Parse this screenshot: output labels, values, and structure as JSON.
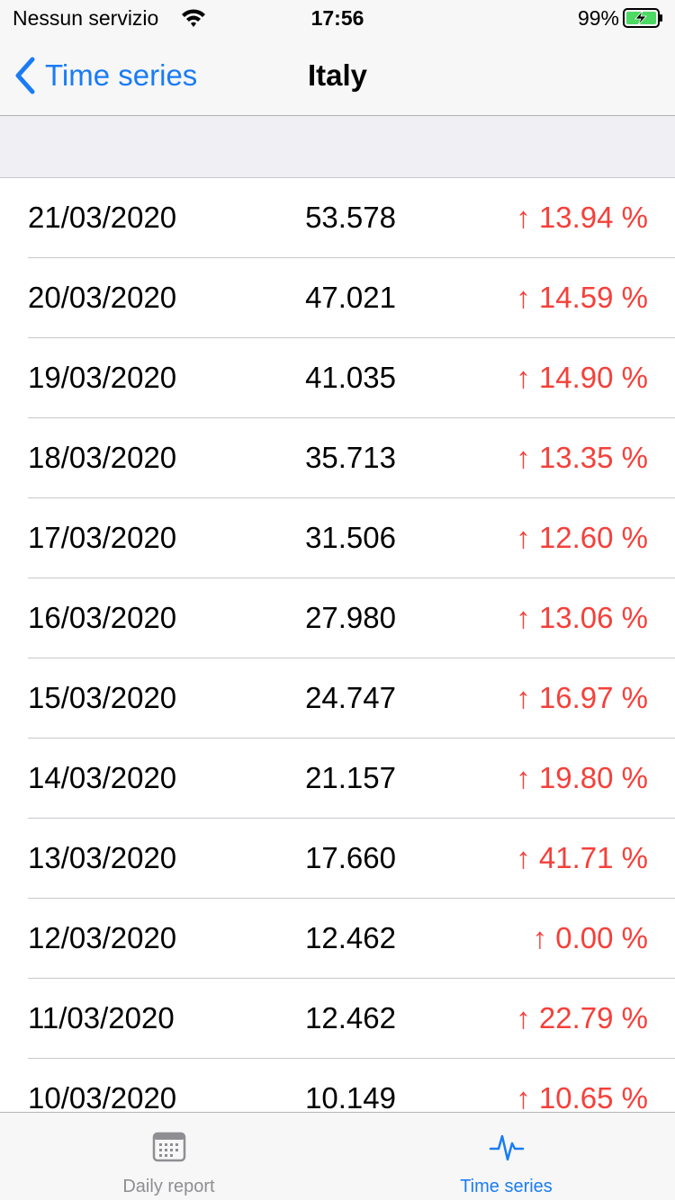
{
  "status_bar": {
    "carrier": "Nessun servizio",
    "time": "17:56",
    "battery_percent": "99%",
    "wifi_icon": "wifi-icon",
    "battery_icon": "battery-charging-icon"
  },
  "nav": {
    "back_label": "Time series",
    "title": "Italy",
    "back_icon": "chevron-left-icon"
  },
  "colors": {
    "accent": "#1a7cf5",
    "increase": "#f5403a",
    "inactive_tab": "#8e8e93",
    "battery_green": "#4cd964"
  },
  "rows": [
    {
      "date": "21/03/2020",
      "value": "53.578",
      "change": "↑ 13.94 %"
    },
    {
      "date": "20/03/2020",
      "value": "47.021",
      "change": "↑ 14.59 %"
    },
    {
      "date": "19/03/2020",
      "value": "41.035",
      "change": "↑ 14.90 %"
    },
    {
      "date": "18/03/2020",
      "value": "35.713",
      "change": "↑ 13.35 %"
    },
    {
      "date": "17/03/2020",
      "value": "31.506",
      "change": "↑ 12.60 %"
    },
    {
      "date": "16/03/2020",
      "value": "27.980",
      "change": "↑ 13.06 %"
    },
    {
      "date": "15/03/2020",
      "value": "24.747",
      "change": "↑ 16.97 %"
    },
    {
      "date": "14/03/2020",
      "value": "21.157",
      "change": "↑ 19.80 %"
    },
    {
      "date": "13/03/2020",
      "value": "17.660",
      "change": "↑ 41.71 %"
    },
    {
      "date": "12/03/2020",
      "value": "12.462",
      "change": "↑ 0.00 %"
    },
    {
      "date": "11/03/2020",
      "value": "12.462",
      "change": "↑ 22.79 %"
    },
    {
      "date": "10/03/2020",
      "value": "10.149",
      "change": "↑ 10.65 %"
    }
  ],
  "tab_bar": {
    "tabs": [
      {
        "label": "Daily report",
        "icon": "calendar-icon",
        "selected": false
      },
      {
        "label": "Time series",
        "icon": "pulse-icon",
        "selected": true
      }
    ]
  }
}
